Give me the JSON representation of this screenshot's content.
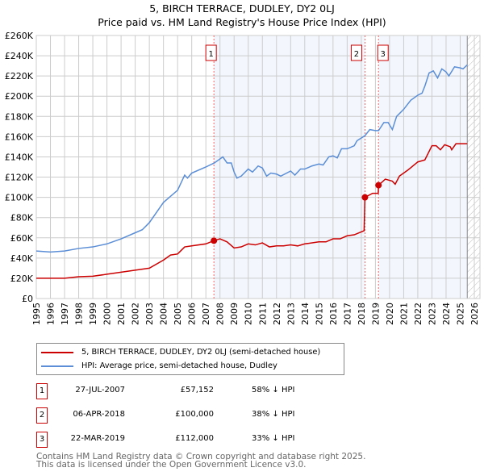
{
  "title": "5, BIRCH TERRACE, DUDLEY, DY2 0LJ",
  "subtitle": "Price paid vs. HM Land Registry's House Price Index (HPI)",
  "chart_data": {
    "type": "line",
    "xlim": [
      1995,
      2026
    ],
    "ylim": [
      0,
      260000
    ],
    "yticks": [
      "£0",
      "£20K",
      "£40K",
      "£60K",
      "£80K",
      "£100K",
      "£120K",
      "£140K",
      "£160K",
      "£180K",
      "£200K",
      "£220K",
      "£240K",
      "£260K"
    ],
    "xticks": [
      "1995",
      "1996",
      "1997",
      "1998",
      "1999",
      "2000",
      "2001",
      "2002",
      "2003",
      "2004",
      "2005",
      "2006",
      "2007",
      "2008",
      "2009",
      "2010",
      "2011",
      "2012",
      "2013",
      "2014",
      "2015",
      "2016",
      "2017",
      "2018",
      "2019",
      "2020",
      "2021",
      "2022",
      "2023",
      "2024",
      "2025",
      "2026"
    ],
    "series": [
      {
        "name": "5, BIRCH TERRACE, DUDLEY, DY2 0LJ (semi-detached house)",
        "color": "#cc0000",
        "points": [
          [
            1995,
            20
          ],
          [
            1997,
            20
          ],
          [
            1998,
            21.5
          ],
          [
            1999,
            22
          ],
          [
            2000,
            24
          ],
          [
            2001,
            26
          ],
          [
            2002,
            28
          ],
          [
            2003,
            30
          ],
          [
            2004,
            38
          ],
          [
            2004.5,
            43
          ],
          [
            2005,
            44
          ],
          [
            2005.5,
            51
          ],
          [
            2006,
            52
          ],
          [
            2007,
            54
          ],
          [
            2007.57,
            57.2
          ],
          [
            2008,
            59
          ],
          [
            2008.5,
            56
          ],
          [
            2009,
            50
          ],
          [
            2009.5,
            51
          ],
          [
            2010,
            54
          ],
          [
            2010.5,
            53
          ],
          [
            2011,
            55
          ],
          [
            2011.5,
            51
          ],
          [
            2012,
            52
          ],
          [
            2012.5,
            52
          ],
          [
            2013,
            53
          ],
          [
            2013.5,
            52
          ],
          [
            2014,
            54
          ],
          [
            2015,
            56
          ],
          [
            2015.5,
            56
          ],
          [
            2016,
            59
          ],
          [
            2016.5,
            59
          ],
          [
            2017,
            62
          ],
          [
            2017.5,
            63
          ],
          [
            2018.2,
            67
          ],
          [
            2018.26,
            100
          ],
          [
            2018.8,
            104
          ],
          [
            2019.2,
            104
          ],
          [
            2019.22,
            112
          ],
          [
            2019.7,
            118
          ],
          [
            2020.2,
            116
          ],
          [
            2020.4,
            113
          ],
          [
            2020.7,
            121
          ],
          [
            2021.3,
            127
          ],
          [
            2022,
            135
          ],
          [
            2022.5,
            137
          ],
          [
            2023,
            151
          ],
          [
            2023.3,
            151
          ],
          [
            2023.6,
            147
          ],
          [
            2023.9,
            152
          ],
          [
            2024.3,
            150
          ],
          [
            2024.4,
            147
          ],
          [
            2024.7,
            153
          ],
          [
            2025.5,
            153
          ]
        ]
      },
      {
        "name": "HPI: Average price, semi-detached house, Dudley",
        "color": "#5b8ed6",
        "points": [
          [
            1995,
            47
          ],
          [
            1996,
            46
          ],
          [
            1997,
            47
          ],
          [
            1998,
            49.5
          ],
          [
            1999,
            51
          ],
          [
            2000,
            54
          ],
          [
            2001,
            59
          ],
          [
            2002,
            65
          ],
          [
            2002.5,
            68
          ],
          [
            2003,
            75
          ],
          [
            2003.5,
            85
          ],
          [
            2004,
            95
          ],
          [
            2004.5,
            101
          ],
          [
            2005,
            107
          ],
          [
            2005.5,
            122
          ],
          [
            2005.7,
            119
          ],
          [
            2006,
            124
          ],
          [
            2007,
            130
          ],
          [
            2007.6,
            134
          ],
          [
            2008,
            138
          ],
          [
            2008.2,
            140
          ],
          [
            2008.5,
            134
          ],
          [
            2008.8,
            134
          ],
          [
            2009,
            125
          ],
          [
            2009.2,
            119
          ],
          [
            2009.5,
            121
          ],
          [
            2010,
            128
          ],
          [
            2010.3,
            125
          ],
          [
            2010.7,
            131
          ],
          [
            2011,
            129
          ],
          [
            2011.3,
            121
          ],
          [
            2011.6,
            124
          ],
          [
            2012,
            123
          ],
          [
            2012.3,
            121
          ],
          [
            2013,
            126
          ],
          [
            2013.3,
            122
          ],
          [
            2013.7,
            128
          ],
          [
            2014,
            128
          ],
          [
            2014.5,
            131
          ],
          [
            2015,
            133
          ],
          [
            2015.3,
            132
          ],
          [
            2015.7,
            140
          ],
          [
            2016,
            141
          ],
          [
            2016.3,
            139
          ],
          [
            2016.6,
            148
          ],
          [
            2017,
            148
          ],
          [
            2017.5,
            151
          ],
          [
            2017.7,
            156
          ],
          [
            2018.26,
            161
          ],
          [
            2018.6,
            167
          ],
          [
            2019,
            166
          ],
          [
            2019.22,
            166
          ],
          [
            2019.6,
            174
          ],
          [
            2019.9,
            174
          ],
          [
            2020.2,
            167
          ],
          [
            2020.5,
            180
          ],
          [
            2021,
            187
          ],
          [
            2021.5,
            196
          ],
          [
            2022,
            201
          ],
          [
            2022.3,
            203
          ],
          [
            2022.5,
            210
          ],
          [
            2022.8,
            223
          ],
          [
            2023.1,
            225
          ],
          [
            2023.4,
            218
          ],
          [
            2023.7,
            227
          ],
          [
            2024,
            224
          ],
          [
            2024.2,
            220
          ],
          [
            2024.6,
            229
          ],
          [
            2025,
            228
          ],
          [
            2025.2,
            227
          ],
          [
            2025.5,
            231
          ]
        ]
      }
    ],
    "sales": [
      {
        "label": "1",
        "year": 2007.57,
        "value": 57.152
      },
      {
        "label": "2",
        "year": 2018.26,
        "value": 100
      },
      {
        "label": "3",
        "year": 2019.22,
        "value": 112
      }
    ],
    "forecast_start": 2025.5
  },
  "legend": [
    "5, BIRCH TERRACE, DUDLEY, DY2 0LJ (semi-detached house)",
    "HPI: Average price, semi-detached house, Dudley"
  ],
  "transactions": [
    {
      "num": "1",
      "date": "27-JUL-2007",
      "price": "£57,152",
      "hpi": "58% ↓ HPI"
    },
    {
      "num": "2",
      "date": "06-APR-2018",
      "price": "£100,000",
      "hpi": "38% ↓ HPI"
    },
    {
      "num": "3",
      "date": "22-MAR-2019",
      "price": "£112,000",
      "hpi": "33% ↓ HPI"
    }
  ],
  "footer": [
    "Contains HM Land Registry data © Crown copyright and database right 2025.",
    "This data is licensed under the Open Government Licence v3.0."
  ]
}
